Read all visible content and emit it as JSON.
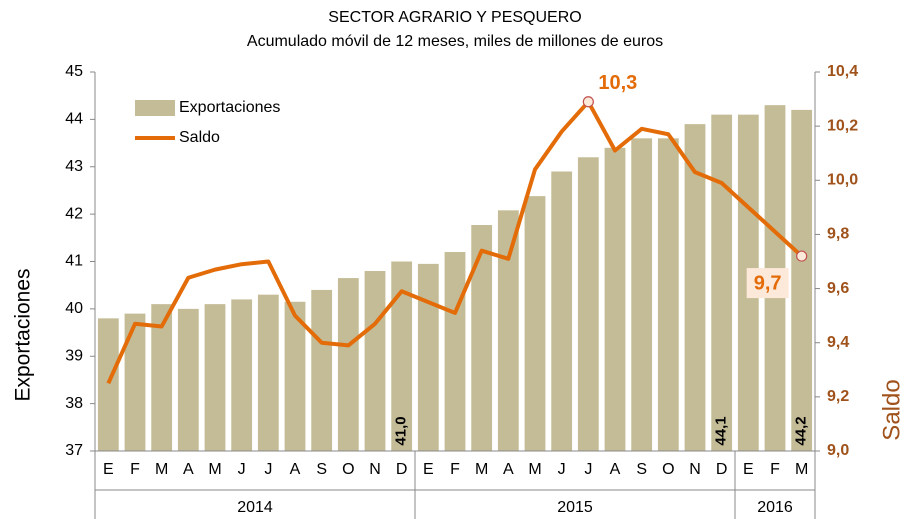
{
  "chart_data": {
    "type": "bar_line",
    "title": "SECTOR AGRARIO Y PESQUERO",
    "subtitle": "Acumulado móvil de 12 meses, miles de millones de euros",
    "ylabel": "Exportaciones",
    "y2label": "Saldo",
    "categories": [
      "E",
      "F",
      "M",
      "A",
      "M",
      "J",
      "J",
      "A",
      "S",
      "O",
      "N",
      "D",
      "E",
      "F",
      "M",
      "A",
      "M",
      "J",
      "J",
      "A",
      "S",
      "O",
      "N",
      "D",
      "E",
      "F",
      "M"
    ],
    "x_groups": [
      {
        "label": "2014",
        "categories": 12
      },
      {
        "label": "2015",
        "categories": 12
      },
      {
        "label": "2016",
        "categories": 3
      }
    ],
    "series": [
      {
        "name": "Exportaciones",
        "type": "bar",
        "axis": "y",
        "color": "#c4bc96",
        "values": [
          39.8,
          39.9,
          40.1,
          40.0,
          40.1,
          40.2,
          40.3,
          40.15,
          40.4,
          40.65,
          40.8,
          41.0,
          40.95,
          41.2,
          41.77,
          42.08,
          42.38,
          42.9,
          43.2,
          43.4,
          43.6,
          43.6,
          43.9,
          44.1,
          44.1,
          44.3,
          44.2
        ],
        "value_labels": [
          null,
          null,
          null,
          null,
          null,
          null,
          null,
          null,
          null,
          null,
          null,
          "41,0",
          null,
          null,
          null,
          null,
          null,
          null,
          null,
          null,
          null,
          null,
          null,
          "44,1",
          null,
          null,
          "44,2"
        ]
      },
      {
        "name": "Saldo",
        "type": "line",
        "axis": "y2",
        "color": "#e36c09",
        "values": [
          9.25,
          9.47,
          9.46,
          9.64,
          9.67,
          9.69,
          9.7,
          9.5,
          9.4,
          9.39,
          9.47,
          9.59,
          9.55,
          9.51,
          9.74,
          9.71,
          10.04,
          10.18,
          10.29,
          10.11,
          10.19,
          10.17,
          10.03,
          9.99,
          9.9,
          9.81,
          9.72
        ],
        "value_labels": [
          null,
          null,
          null,
          null,
          null,
          null,
          null,
          null,
          null,
          null,
          null,
          null,
          null,
          null,
          null,
          null,
          null,
          null,
          "10,3",
          null,
          null,
          null,
          null,
          null,
          null,
          null,
          "9,7"
        ]
      }
    ],
    "ylim": [
      37,
      45
    ],
    "yticks": [
      37,
      38,
      39,
      40,
      41,
      42,
      43,
      44,
      45
    ],
    "y2lim": [
      9.0,
      10.4
    ],
    "y2ticks": [
      {
        "value": 9.0,
        "label": "9,0"
      },
      {
        "value": 9.2,
        "label": "9,2"
      },
      {
        "value": 9.4,
        "label": "9,4"
      },
      {
        "value": 9.6,
        "label": "9,6"
      },
      {
        "value": 9.8,
        "label": "9,8"
      },
      {
        "value": 10.0,
        "label": "10,0"
      },
      {
        "value": 10.2,
        "label": "10,2"
      },
      {
        "value": 10.4,
        "label": "10,4"
      }
    ],
    "y2_color": "#a0521b",
    "legend": "upper left",
    "grid": false
  }
}
